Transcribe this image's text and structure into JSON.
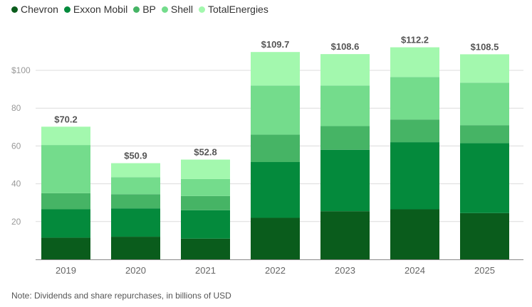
{
  "chart_data": {
    "type": "bar",
    "stacked": true,
    "categories": [
      "2019",
      "2020",
      "2021",
      "2022",
      "2023",
      "2024",
      "2025"
    ],
    "series": [
      {
        "name": "Chevron",
        "color": "#0a5c1c",
        "values": [
          11.5,
          12.0,
          11.0,
          22.0,
          25.5,
          26.5,
          24.5
        ]
      },
      {
        "name": "Exxon Mobil",
        "color": "#048a3c",
        "values": [
          15.0,
          15.0,
          15.0,
          29.5,
          32.5,
          35.5,
          37.0
        ]
      },
      {
        "name": "BP",
        "color": "#46b465",
        "values": [
          8.5,
          7.5,
          7.5,
          14.5,
          12.5,
          12.0,
          9.5
        ]
      },
      {
        "name": "Shell",
        "color": "#74dc8c",
        "values": [
          25.5,
          9.0,
          9.0,
          26.0,
          21.5,
          22.5,
          22.5
        ]
      },
      {
        "name": "TotalEnergies",
        "color": "#a3f8ae",
        "values": [
          9.7,
          7.4,
          10.3,
          17.7,
          16.6,
          15.7,
          15.0
        ]
      }
    ],
    "totals": [
      "$70.2",
      "$50.9",
      "$52.8",
      "$109.7",
      "$108.6",
      "$112.2",
      "$108.5"
    ],
    "y_ticks": [
      20,
      40,
      60,
      80,
      100
    ],
    "y_tick_labels": [
      "20",
      "40",
      "60",
      "80",
      "$100"
    ],
    "ylim": [
      0,
      120
    ],
    "legend_position": "top-left",
    "note": "Note: Dividends and share repurchases, in billions of USD"
  }
}
